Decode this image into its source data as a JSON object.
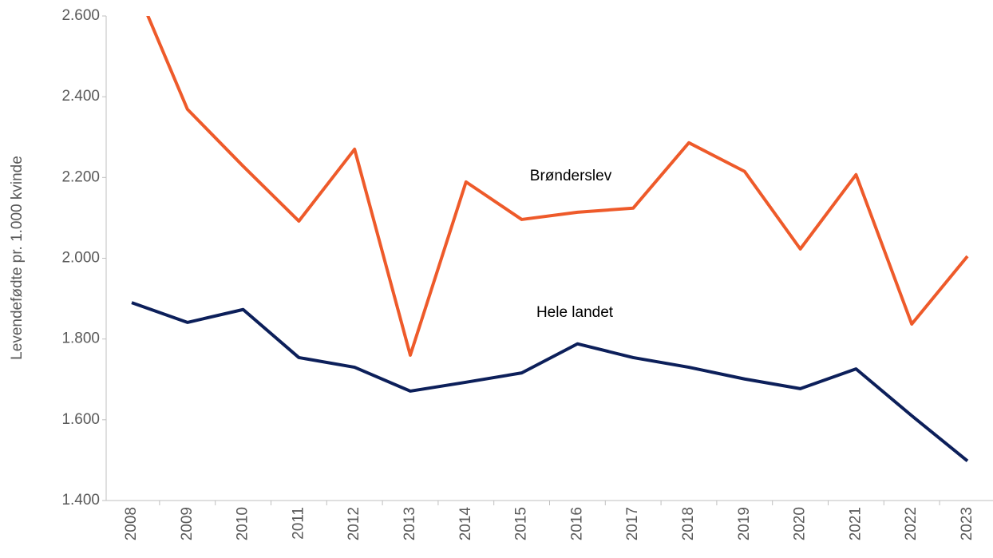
{
  "chart_data": {
    "type": "line",
    "y_label": "Levendefødte pr. 1.000 kvinde",
    "categories": [
      "2008",
      "2009",
      "2010",
      "2011",
      "2012",
      "2013",
      "2014",
      "2015",
      "2016",
      "2017",
      "2018",
      "2019",
      "2020",
      "2021",
      "2022",
      "2023"
    ],
    "series": [
      {
        "name": "Brønderslev",
        "color": "#ee5a2a",
        "values": [
          2695,
          2369,
          2228,
          2092,
          2270,
          1760,
          2189,
          2096,
          2114,
          2124,
          2286,
          2215,
          2023,
          2207,
          1837,
          2005
        ]
      },
      {
        "name": "Hele landet",
        "color": "#0c1f5a",
        "values": [
          1890,
          1841,
          1873,
          1754,
          1730,
          1671,
          1693,
          1716,
          1788,
          1754,
          1730,
          1701,
          1677,
          1726,
          1610,
          1498
        ]
      }
    ],
    "ylim": [
      1400,
      2600
    ],
    "yticks": [
      {
        "value": 1400,
        "label": "1.400"
      },
      {
        "value": 1600,
        "label": "1.600"
      },
      {
        "value": 1800,
        "label": "1.800"
      },
      {
        "value": 2000,
        "label": "2.000"
      },
      {
        "value": 2200,
        "label": "2.200"
      },
      {
        "value": 2400,
        "label": "2.400"
      },
      {
        "value": 2600,
        "label": "2.600"
      }
    ],
    "grid": false
  }
}
